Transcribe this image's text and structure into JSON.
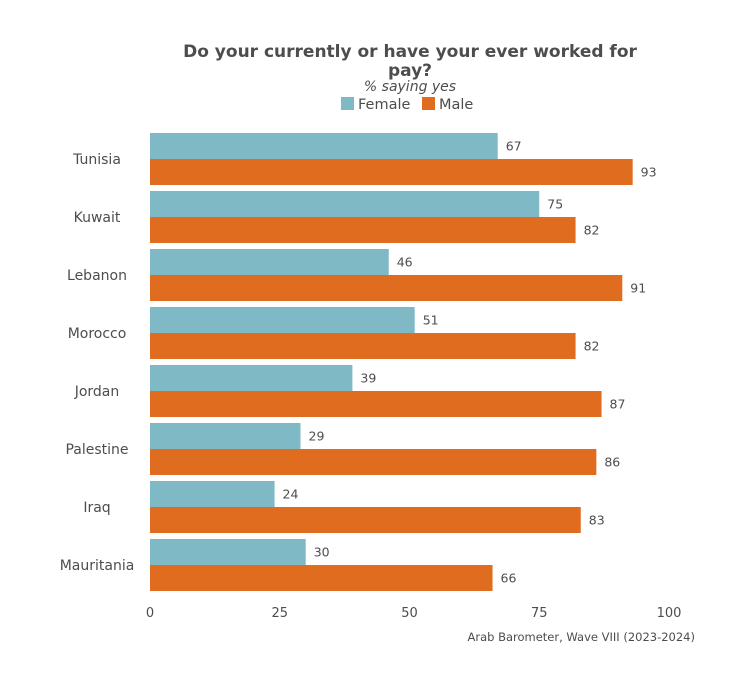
{
  "chart_data": {
    "type": "bar",
    "orientation": "horizontal",
    "title_line1": "Do your currently or have your ever worked for",
    "title_line2": "pay?",
    "subtitle": "% saying yes",
    "categories": [
      "Tunisia",
      "Kuwait",
      "Lebanon",
      "Morocco",
      "Jordan",
      "Palestine",
      "Iraq",
      "Mauritania"
    ],
    "series": [
      {
        "name": "Female",
        "color": "#7fb9c6",
        "values": [
          67,
          75,
          46,
          51,
          39,
          29,
          24,
          30
        ]
      },
      {
        "name": "Male",
        "color": "#e06c1f",
        "values": [
          93,
          82,
          91,
          82,
          87,
          86,
          83,
          66
        ]
      }
    ],
    "xlim": [
      0,
      100
    ],
    "xticks": [
      0,
      25,
      50,
      75,
      100
    ],
    "grid": false,
    "legend_position": "top",
    "source": "Arab Barometer, Wave VIII (2023-2024)"
  }
}
